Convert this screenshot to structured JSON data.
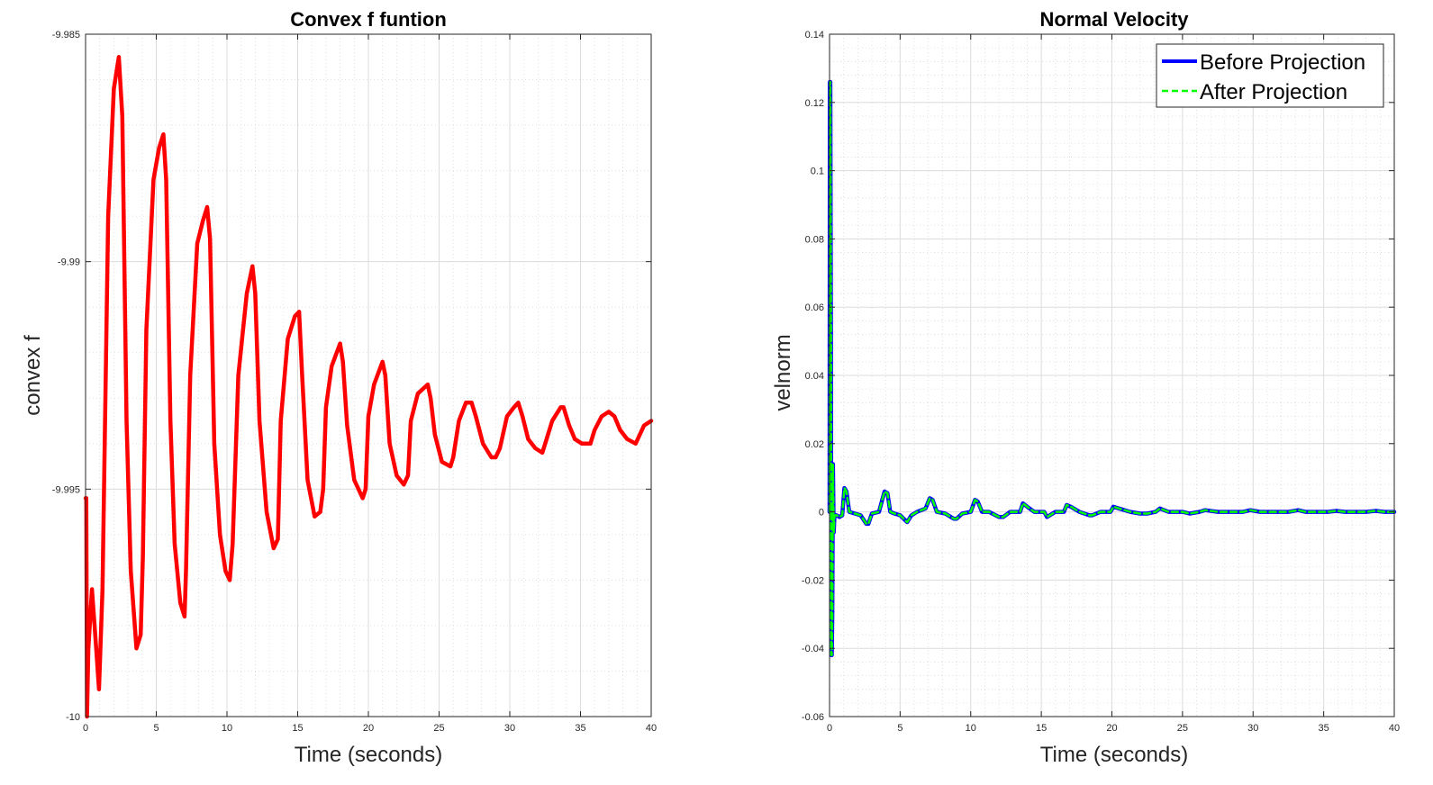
{
  "chart_data": [
    {
      "type": "line",
      "title": "Convex f funtion",
      "xlabel": "Time (seconds)",
      "ylabel": "convex f",
      "xlim": [
        0,
        40
      ],
      "ylim": [
        -10,
        -9.985
      ],
      "xticks": [
        0,
        5,
        10,
        15,
        20,
        25,
        30,
        35,
        40
      ],
      "xtick_labels": [
        "0",
        "5",
        "10",
        "15",
        "20",
        "25",
        "30",
        "35",
        "40"
      ],
      "yticks": [
        -10,
        -9.995,
        -9.99,
        -9.985
      ],
      "ytick_labels": [
        "-10",
        "-9.995",
        "-9.99",
        "-9.985"
      ],
      "grid": true,
      "minor_grid": true,
      "series": [
        {
          "color": "#ff0000",
          "x": [
            0,
            0.05,
            0.1,
            0.2,
            0.45,
            0.75,
            0.95,
            1.2,
            1.6,
            2.0,
            2.35,
            2.6,
            2.9,
            3.2,
            3.6,
            3.9,
            4.05,
            4.3,
            4.8,
            5.2,
            5.5,
            5.7,
            6.0,
            6.3,
            6.7,
            7.0,
            7.1,
            7.4,
            7.9,
            8.3,
            8.6,
            8.8,
            9.1,
            9.5,
            9.9,
            10.2,
            10.4,
            10.8,
            11.4,
            11.8,
            12.0,
            12.3,
            12.8,
            13.3,
            13.6,
            13.8,
            14.3,
            14.8,
            15.1,
            15.3,
            15.7,
            16.2,
            16.6,
            16.8,
            17.0,
            17.4,
            18.0,
            18.2,
            18.5,
            19.0,
            19.6,
            19.8,
            20.0,
            20.4,
            21.0,
            21.2,
            21.5,
            22.0,
            22.5,
            22.8,
            23.0,
            23.5,
            24.2,
            24.4,
            24.7,
            25.2,
            25.8,
            26.0,
            26.4,
            26.9,
            27.3,
            27.6,
            28.1,
            28.7,
            29.0,
            29.3,
            29.8,
            30.3,
            30.6,
            30.9,
            31.3,
            31.8,
            32.3,
            32.5,
            33.0,
            33.6,
            33.8,
            34.2,
            34.6,
            35.1,
            35.7,
            36.0,
            36.5,
            37.0,
            37.4,
            37.8,
            38.3,
            38.9,
            39.2,
            39.5,
            40.0
          ],
          "y": [
            -9.9952,
            -9.9952,
            -10.0,
            -9.9985,
            -9.9972,
            -9.9985,
            -9.9994,
            -9.9972,
            -9.989,
            -9.9862,
            -9.9855,
            -9.9868,
            -9.9935,
            -9.9968,
            -9.9985,
            -9.9982,
            -9.9965,
            -9.9915,
            -9.9882,
            -9.9875,
            -9.9872,
            -9.9882,
            -9.9935,
            -9.9962,
            -9.9975,
            -9.9978,
            -9.9968,
            -9.9925,
            -9.9896,
            -9.9891,
            -9.9888,
            -9.9895,
            -9.994,
            -9.996,
            -9.9968,
            -9.997,
            -9.9962,
            -9.9925,
            -9.9907,
            -9.9901,
            -9.9907,
            -9.9935,
            -9.9955,
            -9.9963,
            -9.9961,
            -9.9935,
            -9.9917,
            -9.9912,
            -9.9911,
            -9.9924,
            -9.9948,
            -9.9956,
            -9.9955,
            -9.995,
            -9.9932,
            -9.9923,
            -9.9918,
            -9.9922,
            -9.9936,
            -9.9948,
            -9.9952,
            -9.995,
            -9.9934,
            -9.9927,
            -9.9922,
            -9.9925,
            -9.994,
            -9.9947,
            -9.9949,
            -9.9947,
            -9.9935,
            -9.9929,
            -9.9927,
            -9.993,
            -9.9938,
            -9.9944,
            -9.9945,
            -9.9943,
            -9.9935,
            -9.9931,
            -9.9931,
            -9.9934,
            -9.994,
            -9.9943,
            -9.9943,
            -9.9941,
            -9.9934,
            -9.9932,
            -9.9931,
            -9.9934,
            -9.9939,
            -9.9941,
            -9.9942,
            -9.994,
            -9.9935,
            -9.9932,
            -9.9932,
            -9.9936,
            -9.9939,
            -9.994,
            -9.994,
            -9.9937,
            -9.9934,
            -9.9933,
            -9.9934,
            -9.9937,
            -9.9939,
            -9.994,
            -9.9938,
            -9.9936,
            -9.9935
          ]
        }
      ]
    },
    {
      "type": "line",
      "title": "Normal Velocity",
      "xlabel": "Time (seconds)",
      "ylabel": "velnorm",
      "xlim": [
        0,
        40
      ],
      "ylim": [
        -0.06,
        0.14
      ],
      "xticks": [
        0,
        5,
        10,
        15,
        20,
        25,
        30,
        35,
        40
      ],
      "xtick_labels": [
        "0",
        "5",
        "10",
        "15",
        "20",
        "25",
        "30",
        "35",
        "40"
      ],
      "yticks": [
        -0.06,
        -0.04,
        -0.02,
        0,
        0.02,
        0.04,
        0.06,
        0.08,
        0.1,
        0.12,
        0.14
      ],
      "ytick_labels": [
        "-0.06",
        "-0.04",
        "-0.02",
        "0",
        "0.02",
        "0.04",
        "0.06",
        "0.08",
        "0.1",
        "0.12",
        "0.14"
      ],
      "grid": true,
      "minor_grid": true,
      "legend_position": "top-right",
      "series": [
        {
          "name": "Before Projection",
          "color": "#0000ff",
          "style": "solid",
          "x": [
            0,
            0.02,
            0.06,
            0.1,
            0.12,
            0.16,
            0.2,
            0.24,
            0.28,
            0.3,
            0.35,
            0.5,
            0.7,
            0.9,
            1.05,
            1.2,
            1.4,
            1.8,
            2.2,
            2.6,
            2.75,
            3.0,
            3.5,
            3.9,
            4.1,
            4.3,
            4.6,
            5.0,
            5.5,
            5.8,
            6.2,
            6.8,
            7.1,
            7.3,
            7.6,
            8.2,
            8.8,
            9.0,
            9.4,
            10.0,
            10.3,
            10.5,
            10.8,
            11.3,
            12.0,
            12.3,
            12.8,
            13.5,
            13.7,
            14.0,
            14.5,
            15.2,
            15.4,
            16.0,
            16.6,
            16.8,
            17.1,
            17.7,
            18.4,
            18.6,
            19.2,
            19.9,
            20.1,
            20.5,
            21.3,
            22.0,
            22.5,
            23.1,
            23.4,
            24.0,
            25.0,
            25.5,
            26.2,
            26.6,
            27.5,
            28.0,
            28.5,
            29.3,
            29.8,
            30.5,
            31.0,
            31.8,
            32.5,
            33.2,
            33.7,
            34.5,
            35.3,
            35.9,
            36.5,
            37.3,
            38.0,
            38.7,
            39.3,
            40.0
          ],
          "y": [
            0,
            0.126,
            0.126,
            0.05,
            -0.042,
            -0.042,
            -0.03,
            0.014,
            0.0,
            -0.006,
            -0.001,
            -0.001,
            -0.0015,
            -0.001,
            0.007,
            0.006,
            0.0,
            -0.0005,
            -0.001,
            -0.0035,
            -0.0035,
            -0.0005,
            0.0,
            0.006,
            0.0055,
            0.0,
            -0.0005,
            -0.001,
            -0.003,
            -0.001,
            0.0,
            0.001,
            0.004,
            0.0035,
            0.0,
            -0.0005,
            -0.002,
            -0.002,
            -0.0005,
            0.0,
            0.0035,
            0.003,
            0.0,
            0.0,
            -0.0015,
            -0.0015,
            0.0,
            0.0,
            0.0025,
            0.0015,
            0.0,
            0.0,
            -0.0015,
            0.0,
            0.0,
            0.002,
            0.0015,
            0.0,
            -0.001,
            -0.001,
            0.0,
            0.0,
            0.0015,
            0.001,
            0.0,
            -0.0005,
            -0.0005,
            0.0,
            0.001,
            0.0,
            0.0,
            -0.0005,
            0.0,
            0.0005,
            0.0,
            0.0,
            0.0,
            0.0,
            0.0005,
            0.0,
            0.0,
            0.0,
            0.0,
            0.0005,
            0.0,
            0.0,
            0.0,
            0.0003,
            0.0,
            0.0,
            0.0,
            0.0003,
            0.0,
            0.0
          ]
        },
        {
          "name": "After Projection",
          "color": "#00ff00",
          "style": "dashed",
          "x": [
            0,
            0.02,
            0.06,
            0.1,
            0.12,
            0.16,
            0.2,
            0.24,
            0.28,
            0.3,
            0.35,
            0.5,
            0.7,
            0.9,
            1.05,
            1.2,
            1.4,
            1.8,
            2.2,
            2.6,
            2.75,
            3.0,
            3.5,
            3.9,
            4.1,
            4.3,
            4.6,
            5.0,
            5.5,
            5.8,
            6.2,
            6.8,
            7.1,
            7.3,
            7.6,
            8.2,
            8.8,
            9.0,
            9.4,
            10.0,
            10.3,
            10.5,
            10.8,
            11.3,
            12.0,
            12.3,
            12.8,
            13.5,
            13.7,
            14.0,
            14.5,
            15.2,
            15.4,
            16.0,
            16.6,
            16.8,
            17.1,
            17.7,
            18.4,
            18.6,
            19.2,
            19.9,
            20.1,
            20.5,
            21.3,
            22.0,
            22.5,
            23.1,
            23.4,
            24.0,
            25.0,
            25.5,
            26.2,
            26.6,
            27.5,
            28.0,
            28.5,
            29.3,
            29.8,
            30.5,
            31.0,
            31.8,
            32.5,
            33.2,
            33.7,
            34.5,
            35.3,
            35.9,
            36.5,
            37.3,
            38.0,
            38.7,
            39.3,
            40.0
          ],
          "y": [
            0,
            0.126,
            0.126,
            0.05,
            -0.042,
            -0.042,
            -0.03,
            0.014,
            0.0,
            -0.006,
            -0.001,
            -0.001,
            -0.0015,
            -0.001,
            0.007,
            0.006,
            0.0,
            -0.0005,
            -0.001,
            -0.0035,
            -0.0035,
            -0.0005,
            0.0,
            0.006,
            0.0055,
            0.0,
            -0.0005,
            -0.001,
            -0.003,
            -0.001,
            0.0,
            0.001,
            0.004,
            0.0035,
            0.0,
            -0.0005,
            -0.002,
            -0.002,
            -0.0005,
            0.0,
            0.0035,
            0.003,
            0.0,
            0.0,
            -0.0015,
            -0.0015,
            0.0,
            0.0,
            0.0025,
            0.0015,
            0.0,
            0.0,
            -0.0015,
            0.0,
            0.0,
            0.002,
            0.0015,
            0.0,
            -0.001,
            -0.001,
            0.0,
            0.0,
            0.0015,
            0.001,
            0.0,
            -0.0005,
            -0.0005,
            0.0,
            0.001,
            0.0,
            0.0,
            -0.0005,
            0.0,
            0.0005,
            0.0,
            0.0,
            0.0,
            0.0,
            0.0005,
            0.0,
            0.0,
            0.0,
            0.0,
            0.0005,
            0.0,
            0.0,
            0.0,
            0.0003,
            0.0,
            0.0,
            0.0,
            0.0003,
            0.0,
            0.0
          ]
        }
      ]
    }
  ]
}
